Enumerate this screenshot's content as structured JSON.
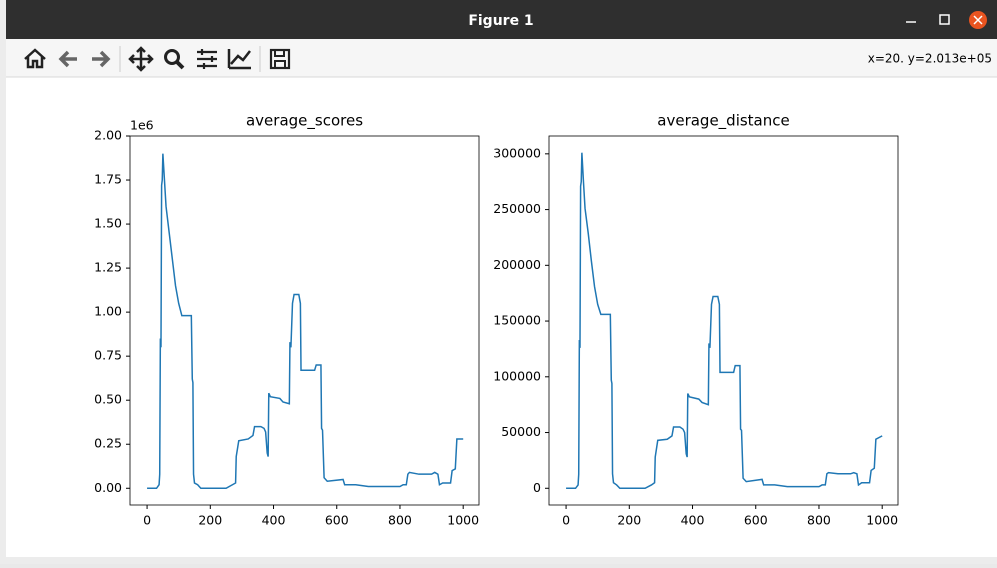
{
  "window": {
    "title": "Figure 1"
  },
  "toolbar": {
    "coordinates": "x=20. y=2.013e+05"
  },
  "chart_data": [
    {
      "type": "line",
      "title": "average_scores",
      "offset_label": "1e6",
      "color": "#1f77b4",
      "x": [
        0,
        30,
        38,
        40,
        42,
        44,
        46,
        48,
        50,
        55,
        60,
        70,
        80,
        90,
        100,
        110,
        140,
        143,
        145,
        147,
        150,
        160,
        170,
        250,
        270,
        280,
        282,
        290,
        320,
        335,
        340,
        360,
        370,
        375,
        380,
        383,
        385,
        390,
        420,
        430,
        450,
        452,
        455,
        460,
        465,
        480,
        485,
        487,
        530,
        535,
        550,
        552,
        555,
        560,
        570,
        620,
        625,
        660,
        700,
        800,
        810,
        820,
        825,
        830,
        860,
        900,
        910,
        920,
        925,
        935,
        960,
        965,
        975,
        980,
        1000
      ],
      "values": [
        0,
        0,
        0.02,
        0.08,
        0.85,
        0.8,
        1.72,
        1.75,
        1.9,
        1.75,
        1.6,
        1.45,
        1.3,
        1.15,
        1.05,
        0.98,
        0.98,
        0.62,
        0.6,
        0.08,
        0.03,
        0.02,
        0,
        0,
        0.02,
        0.03,
        0.18,
        0.27,
        0.28,
        0.3,
        0.35,
        0.35,
        0.34,
        0.32,
        0.2,
        0.18,
        0.54,
        0.52,
        0.51,
        0.49,
        0.48,
        0.83,
        0.8,
        1.05,
        1.1,
        1.1,
        1.05,
        0.67,
        0.67,
        0.7,
        0.7,
        0.34,
        0.33,
        0.06,
        0.04,
        0.05,
        0.02,
        0.02,
        0.01,
        0.01,
        0.02,
        0.02,
        0.08,
        0.09,
        0.08,
        0.08,
        0.09,
        0.08,
        0.02,
        0.03,
        0.03,
        0.1,
        0.11,
        0.28,
        0.28
      ],
      "xlim": [
        -54,
        1050
      ],
      "xticks": [
        0,
        200,
        400,
        600,
        800,
        1000
      ],
      "ylim": [
        -0.095,
        2.0
      ],
      "yticks": [
        {
          "value": 0,
          "label": "0.00"
        },
        0.25,
        {
          "value": 0.5,
          "label": "0.50"
        },
        0.75,
        {
          "value": 1,
          "label": "1.00"
        },
        1.25,
        {
          "value": 1.5,
          "label": "1.50"
        },
        1.75,
        {
          "value": 2,
          "label": "2.00"
        }
      ]
    },
    {
      "type": "line",
      "title": "average_distance",
      "color": "#1f77b4",
      "x": [
        0,
        30,
        38,
        40,
        42,
        44,
        46,
        48,
        50,
        55,
        60,
        70,
        80,
        90,
        100,
        110,
        140,
        143,
        145,
        147,
        150,
        160,
        170,
        250,
        270,
        280,
        282,
        290,
        320,
        335,
        340,
        360,
        370,
        375,
        380,
        383,
        385,
        390,
        420,
        430,
        450,
        452,
        455,
        460,
        465,
        480,
        485,
        487,
        530,
        535,
        550,
        552,
        555,
        560,
        570,
        620,
        625,
        660,
        700,
        800,
        810,
        820,
        825,
        830,
        860,
        900,
        910,
        920,
        925,
        935,
        960,
        965,
        975,
        980,
        1000
      ],
      "values": [
        0,
        0,
        3000,
        12500,
        133000,
        126000,
        271000,
        275000,
        301000,
        275000,
        251000,
        229000,
        204000,
        181000,
        165000,
        156000,
        156000,
        97000,
        94000,
        13000,
        5000,
        3000,
        0,
        0,
        3000,
        5000,
        28000,
        43000,
        44000,
        47000,
        55000,
        55000,
        53000,
        50000,
        31000,
        28000,
        85000,
        82000,
        80000,
        77000,
        75000,
        130000,
        126000,
        165000,
        172000,
        172000,
        165000,
        104000,
        104000,
        110000,
        110000,
        53000,
        52000,
        9000,
        6000,
        8000,
        3000,
        3000,
        1500,
        1500,
        3000,
        3000,
        13000,
        14000,
        13000,
        13000,
        14000,
        13000,
        3000,
        5000,
        5000,
        16000,
        18000,
        44000,
        47000
      ],
      "xlim": [
        -54,
        1050
      ],
      "xticks": [
        0,
        200,
        400,
        600,
        800,
        1000
      ],
      "ylim": [
        -15000,
        316000
      ],
      "yticks": [
        0,
        50000,
        100000,
        150000,
        200000,
        250000,
        300000
      ]
    }
  ]
}
